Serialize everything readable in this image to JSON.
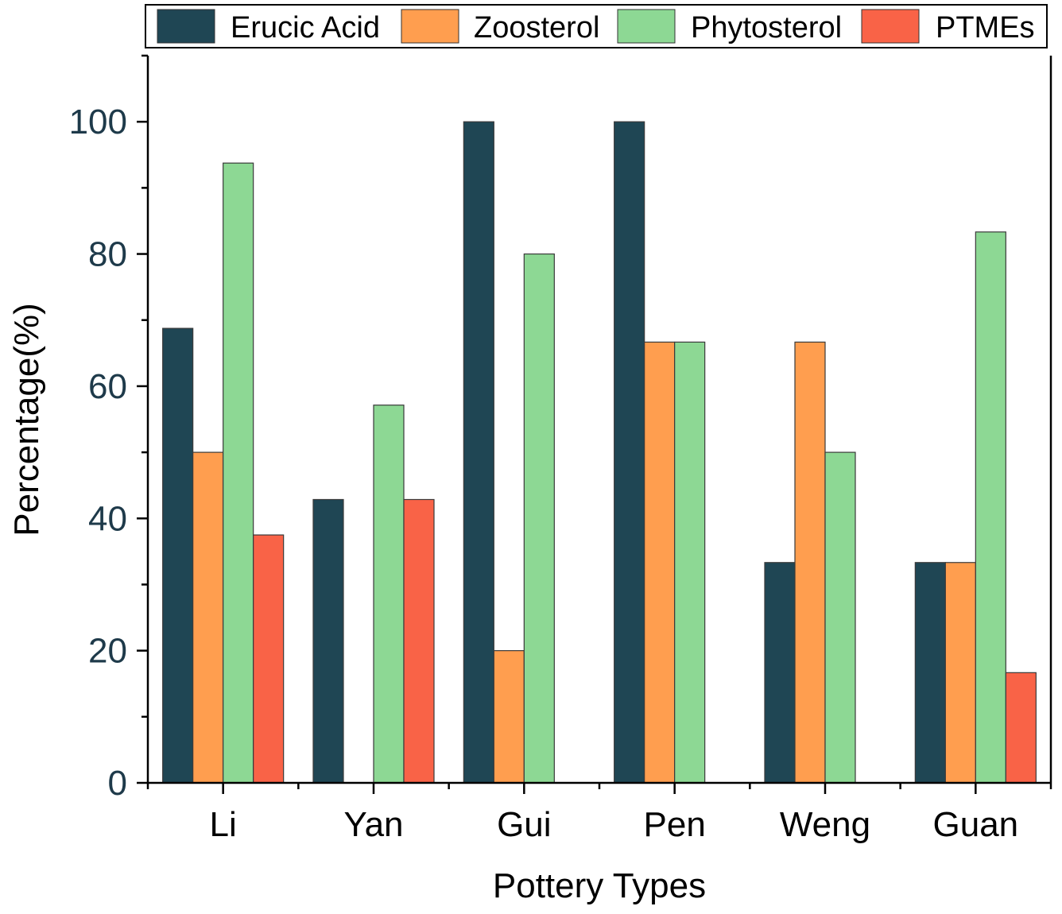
{
  "chart_data": {
    "type": "bar",
    "title": "",
    "xlabel": "Pottery Types",
    "ylabel": "Percentage(%)",
    "ylim": [
      0,
      110
    ],
    "yticks": [
      0,
      20,
      40,
      60,
      80,
      100
    ],
    "categories": [
      "Li",
      "Yan",
      "Gui",
      "Pen",
      "Weng",
      "Guan"
    ],
    "legend_position": "top",
    "series": [
      {
        "name": "Erucic Acid",
        "color": "#1f4654",
        "values": [
          68.75,
          42.86,
          100,
          100,
          33.33,
          33.33
        ]
      },
      {
        "name": "Zoosterol",
        "color": "#ff9e4f",
        "values": [
          50,
          0,
          20,
          66.67,
          66.67,
          33.33
        ]
      },
      {
        "name": "Phytosterol",
        "color": "#8dd894",
        "values": [
          93.75,
          57.14,
          80,
          66.67,
          50,
          83.33
        ]
      },
      {
        "name": "PTMEs",
        "color": "#f96347",
        "values": [
          37.5,
          42.86,
          0,
          0,
          0,
          16.67
        ]
      }
    ]
  }
}
